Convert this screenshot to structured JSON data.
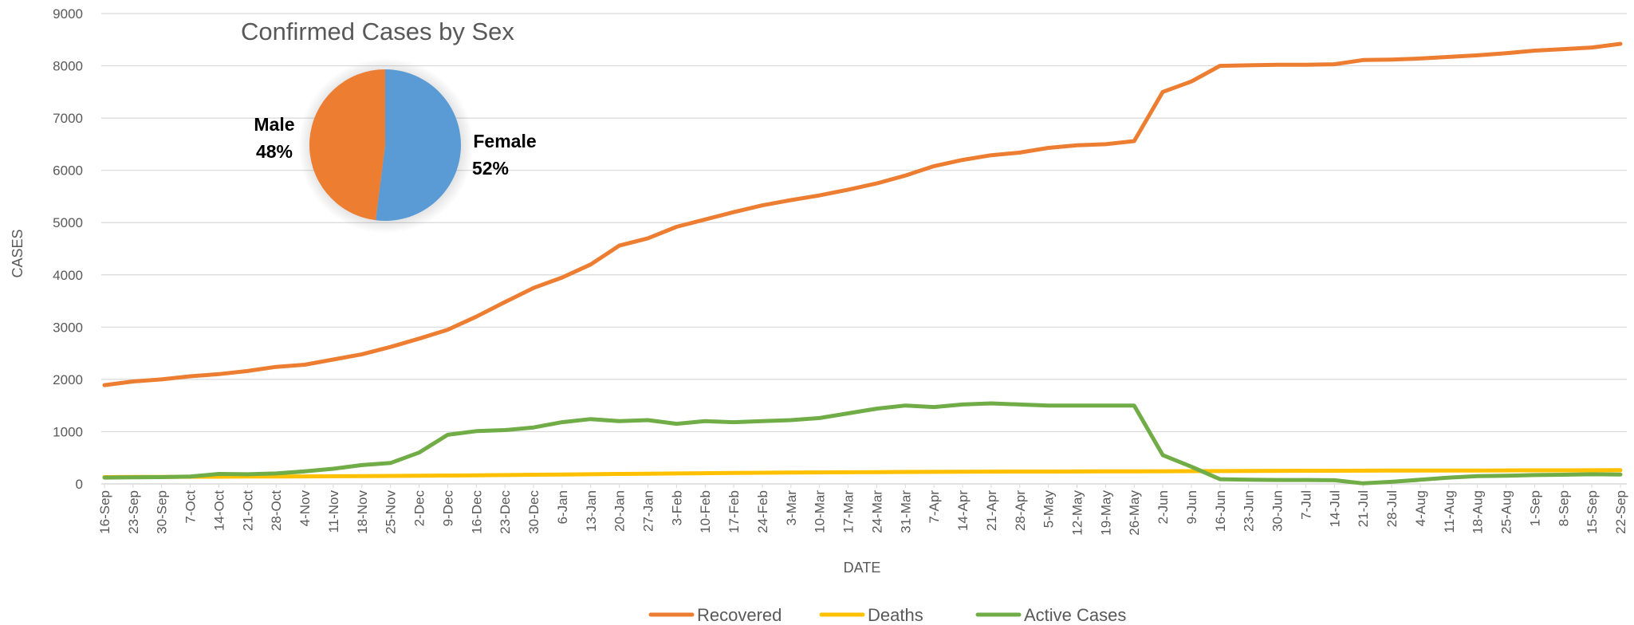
{
  "chart_data": [
    {
      "type": "line",
      "title": "",
      "xlabel": "DATE",
      "ylabel": "CASES",
      "ylim": [
        0,
        9000
      ],
      "yticks": [
        "0",
        "1000",
        "2000",
        "3000",
        "4000",
        "5000",
        "6000",
        "7000",
        "8000",
        "9000"
      ],
      "x_tick_labels": [
        "16-Sep",
        "23-Sep",
        "30-Sep",
        "7-Oct",
        "14-Oct",
        "21-Oct",
        "28-Oct",
        "4-Nov",
        "11-Nov",
        "18-Nov",
        "25-Nov",
        "2-Dec",
        "9-Dec",
        "16-Dec",
        "23-Dec",
        "30-Dec",
        "6-Jan",
        "13-Jan",
        "20-Jan",
        "27-Jan",
        "3-Feb",
        "10-Feb",
        "17-Feb",
        "24-Feb",
        "3-Mar",
        "10-Mar",
        "17-Mar",
        "24-Mar",
        "31-Mar",
        "7-Apr",
        "14-Apr",
        "21-Apr",
        "28-Apr",
        "5-May",
        "12-May",
        "19-May",
        "26-May",
        "2-Jun",
        "9-Jun",
        "16-Jun",
        "23-Jun",
        "30-Jun",
        "7-Jul",
        "14-Jul",
        "21-Jul",
        "28-Jul",
        "4-Aug",
        "11-Aug",
        "18-Aug",
        "25-Aug",
        "1-Sep",
        "8-Sep",
        "15-Sep",
        "22-Sep"
      ],
      "grid": true,
      "legend_position": "bottom",
      "series": [
        {
          "name": "Recovered",
          "color": "#ED7D31",
          "values": [
            1890,
            1960,
            2000,
            2060,
            2100,
            2160,
            2240,
            2280,
            2380,
            2480,
            2620,
            2780,
            2950,
            3200,
            3480,
            3750,
            3950,
            4200,
            4560,
            4700,
            4920,
            5060,
            5200,
            5330,
            5430,
            5520,
            5630,
            5750,
            5900,
            6080,
            6200,
            6290,
            6340,
            6430,
            6480,
            6500,
            6560,
            7500,
            7700,
            8000,
            8010,
            8020,
            8020,
            8030,
            8110,
            8120,
            8140,
            8170,
            8200,
            8240,
            8290,
            8320,
            8350,
            8420
          ]
        },
        {
          "name": "Deaths",
          "color": "#FFC000",
          "values": [
            130,
            132,
            134,
            136,
            138,
            140,
            142,
            144,
            146,
            148,
            152,
            155,
            160,
            165,
            170,
            175,
            180,
            185,
            190,
            195,
            200,
            205,
            210,
            213,
            216,
            220,
            223,
            226,
            229,
            231,
            233,
            235,
            236,
            237,
            238,
            239,
            240,
            242,
            244,
            246,
            248,
            250,
            251,
            252,
            253,
            254,
            255,
            256,
            257,
            258,
            259,
            260,
            261,
            262
          ]
        },
        {
          "name": "Active Cases",
          "color": "#70AD47",
          "values": [
            120,
            125,
            130,
            140,
            190,
            185,
            200,
            240,
            290,
            360,
            400,
            600,
            940,
            1010,
            1030,
            1080,
            1180,
            1240,
            1200,
            1220,
            1150,
            1200,
            1180,
            1200,
            1220,
            1260,
            1350,
            1440,
            1500,
            1470,
            1520,
            1540,
            1520,
            1500,
            1500,
            1500,
            1500,
            550,
            330,
            90,
            80,
            75,
            75,
            70,
            10,
            40,
            80,
            120,
            150,
            155,
            170,
            175,
            185,
            180
          ]
        }
      ]
    },
    {
      "type": "pie",
      "title": "Confirmed Cases by Sex",
      "slices": [
        {
          "label": "Female",
          "value": 52,
          "display": "52%",
          "color": "#5B9BD5"
        },
        {
          "label": "Male",
          "value": 48,
          "display": "48%",
          "color": "#ED7D31"
        }
      ]
    }
  ]
}
